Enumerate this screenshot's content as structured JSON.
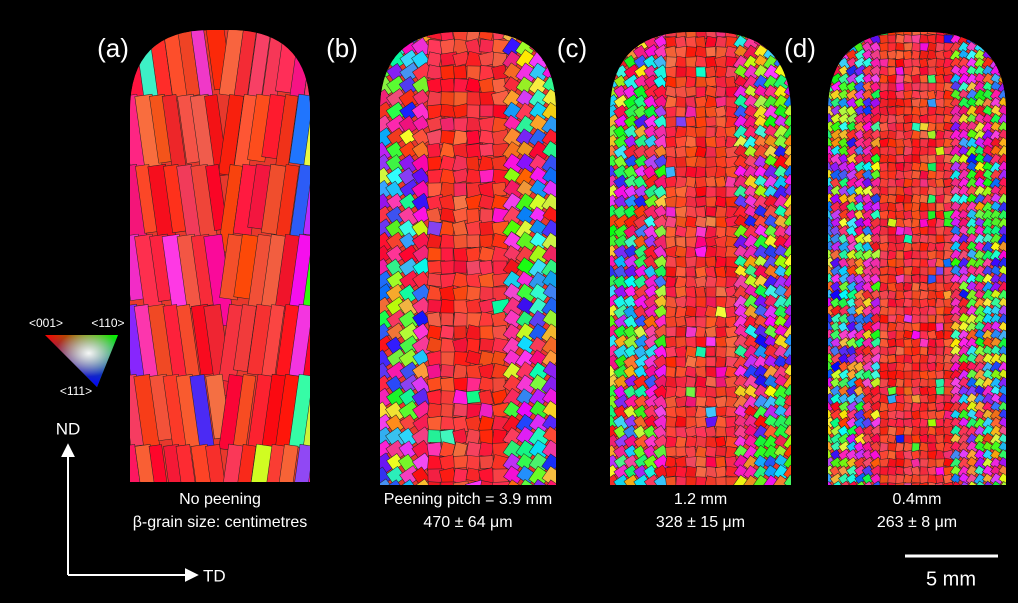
{
  "figure": {
    "panels": [
      {
        "label": "(a)",
        "caption": [
          "No peening",
          "β-grain size: centimetres"
        ]
      },
      {
        "label": "(b)",
        "caption": [
          "Peening pitch = 3.9 mm",
          "470 ± 64 μm"
        ]
      },
      {
        "label": "(c)",
        "caption": [
          "1.2 mm",
          "328 ± 15 μm"
        ]
      },
      {
        "label": "(d)",
        "caption": [
          "0.4mm",
          "263 ± 8 μm"
        ]
      }
    ],
    "ipf_legend": {
      "labels": [
        "<001>",
        "<110>",
        "<111>"
      ]
    },
    "axes": {
      "vertical": "ND",
      "horizontal": "TD"
    },
    "scale_bar": "5 mm"
  }
}
